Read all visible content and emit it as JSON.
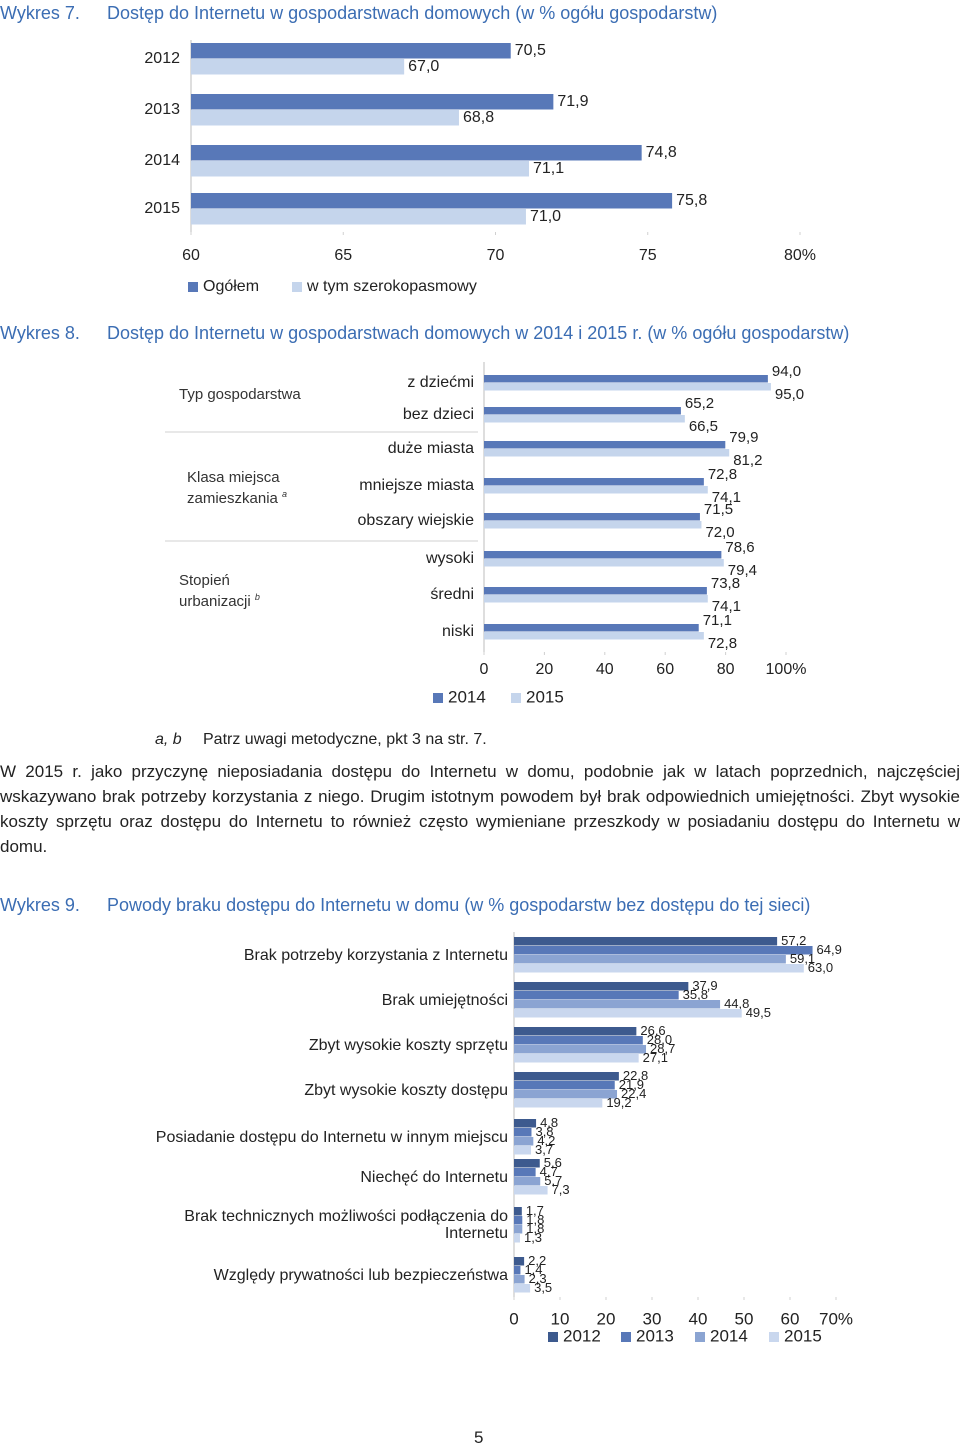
{
  "chart_data": [
    {
      "type": "bar",
      "orientation": "horizontal",
      "label": "Wykres 7.",
      "title": "Dostęp do Internetu w gospodarstwach domowych (w % ogółu gospodarstw)",
      "categories": [
        "2012",
        "2013",
        "2014",
        "2015"
      ],
      "series": [
        {
          "name": "Ogółem",
          "color": "#5878b8",
          "values": [
            70.5,
            71.9,
            74.8,
            75.8
          ],
          "value_labels": [
            "70,5",
            "71,9",
            "74,8",
            "75,8"
          ]
        },
        {
          "name": "w tym szerokopasmowy",
          "color": "#c5d5ec",
          "values": [
            67.0,
            68.8,
            71.1,
            71.0
          ],
          "value_labels": [
            "67,0",
            "68,8",
            "71,1",
            "71,0"
          ]
        }
      ],
      "xlim": [
        60,
        80
      ],
      "xticks": [
        60,
        65,
        70,
        75,
        {
          "value": 80,
          "label": "80%"
        }
      ],
      "legend": "bottom"
    },
    {
      "type": "bar",
      "orientation": "horizontal",
      "label": "Wykres 8.",
      "title": "Dostęp do Internetu w gospodarstwach domowych w 2014 i 2015 r. (w % ogółu gospodarstw)",
      "category_groups": [
        {
          "label": "Typ gospodarstwa"
        },
        {
          "label": "Klasa miejsca zamieszkania",
          "note": "a"
        },
        {
          "label": "Stopień urbanizacji",
          "note": "b"
        }
      ],
      "categories": [
        "z dziećmi",
        "bez dzieci",
        "duże miasta",
        "mniejsze miasta",
        "obszary wiejskie",
        "wysoki",
        "średni",
        "niski"
      ],
      "series": [
        {
          "name": "2014",
          "color": "#5878b8",
          "values": [
            94.0,
            65.2,
            79.9,
            72.8,
            71.5,
            78.6,
            73.8,
            71.1
          ],
          "value_labels": [
            "94,0",
            "65,2",
            "79,9",
            "72,8",
            "71,5",
            "78,6",
            "73,8",
            "71,1"
          ]
        },
        {
          "name": "2015",
          "color": "#c5d5ec",
          "values": [
            95.0,
            66.5,
            81.2,
            74.1,
            72.0,
            79.4,
            74.1,
            72.8
          ],
          "value_labels": [
            "95,0",
            "66,5",
            "81,2",
            "74,1",
            "72,0",
            "79,4",
            "74,1",
            "72,8"
          ]
        }
      ],
      "xlim": [
        0,
        100
      ],
      "xticks": [
        0,
        20,
        40,
        60,
        80,
        {
          "value": 100,
          "label": "100%"
        }
      ],
      "legend": "bottom"
    },
    {
      "type": "bar",
      "orientation": "horizontal",
      "label": "Wykres 9.",
      "title": "Powody braku dostępu do Internetu w domu (w % gospodarstw bez dostępu do tej sieci)",
      "categories": [
        "Brak potrzeby korzystania z Internetu",
        "Brak umiejętności",
        "Zbyt wysokie koszty sprzętu",
        "Zbyt wysokie koszty dostępu",
        "Posiadanie dostępu do Internetu w innym miejscu",
        "Niechęć do Internetu",
        "Brak technicznych możliwości podłączenia do Internetu",
        "Względy prywatności lub bezpieczeństwa"
      ],
      "series": [
        {
          "name": "2012",
          "color": "#3d5a8e",
          "values": [
            57.2,
            37.9,
            26.6,
            22.8,
            4.8,
            5.6,
            1.7,
            2.2
          ],
          "value_labels": [
            "57,2",
            "37,9",
            "26,6",
            "22,8",
            "4,8",
            "5,6",
            "1,7",
            "2,2"
          ]
        },
        {
          "name": "2013",
          "color": "#5878b8",
          "values": [
            64.9,
            35.8,
            28.0,
            21.9,
            3.8,
            4.7,
            1.8,
            1.4
          ],
          "value_labels": [
            "64,9",
            "35,8",
            "28,0",
            "21,9",
            "3,8",
            "4,7",
            "1,8",
            "1,4"
          ]
        },
        {
          "name": "2014",
          "color": "#8ba4d2",
          "values": [
            59.1,
            44.8,
            28.7,
            22.4,
            4.2,
            5.7,
            1.8,
            2.3
          ],
          "value_labels": [
            "59,1",
            "44,8",
            "28,7",
            "22,4",
            "4,2",
            "5,7",
            "1,8",
            "2,3"
          ]
        },
        {
          "name": "2015",
          "color": "#c9d7ee",
          "values": [
            63.0,
            49.5,
            27.1,
            19.2,
            3.7,
            7.3,
            1.3,
            3.5
          ],
          "value_labels": [
            "63,0",
            "49,5",
            "27,1",
            "19,2",
            "3,7",
            "7,3",
            "1,3",
            "3,5"
          ]
        }
      ],
      "xlim": [
        0,
        70
      ],
      "xticks": [
        0,
        10,
        20,
        30,
        40,
        50,
        60,
        {
          "value": 70,
          "label": "70%"
        }
      ],
      "legend": "bottom"
    }
  ],
  "footnote": {
    "marks": "a, b",
    "text": "Patrz uwagi metodyczne, pkt 3 na str. 7."
  },
  "paragraph": "W 2015 r. jako przyczynę nieposiadania dostępu do Internetu w domu, podobnie jak w latach poprzednich, najczęściej wskazywano brak potrzeby korzystania z niego. Drugim istotnym powodem był brak odpowiednich umiejętności. Zbyt wysokie koszty sprzętu oraz dostępu do Internetu to również często wymieniane przeszkody w posiadaniu dostępu do Internetu w domu.",
  "page_number": "5"
}
